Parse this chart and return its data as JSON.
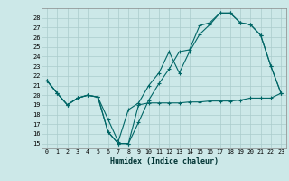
{
  "xlabel": "Humidex (Indice chaleur)",
  "bg_color": "#cce8e8",
  "grid_color": "#aacccc",
  "line_color": "#006666",
  "xlim": [
    -0.5,
    23.5
  ],
  "ylim": [
    14.5,
    29.0
  ],
  "xticks": [
    0,
    1,
    2,
    3,
    4,
    5,
    6,
    7,
    8,
    9,
    10,
    11,
    12,
    13,
    14,
    15,
    16,
    17,
    18,
    19,
    20,
    21,
    22,
    23
  ],
  "yticks": [
    15,
    16,
    17,
    18,
    19,
    20,
    21,
    22,
    23,
    24,
    25,
    26,
    27,
    28
  ],
  "line1_x": [
    0,
    1,
    2,
    3,
    4,
    5,
    6,
    7,
    8,
    9,
    10,
    11,
    12,
    13,
    14,
    15,
    16,
    17,
    18,
    19,
    20,
    21,
    22,
    23
  ],
  "line1_y": [
    21.5,
    20.2,
    19.0,
    19.7,
    20.0,
    19.8,
    16.2,
    15.0,
    15.0,
    19.0,
    19.2,
    19.2,
    19.2,
    19.2,
    19.3,
    19.3,
    19.4,
    19.4,
    19.4,
    19.5,
    19.7,
    19.7,
    19.7,
    20.2
  ],
  "line2_x": [
    0,
    1,
    2,
    3,
    4,
    5,
    6,
    7,
    8,
    9,
    10,
    11,
    12,
    13,
    14,
    15,
    16,
    17,
    18,
    19,
    20,
    21,
    22,
    23
  ],
  "line2_y": [
    21.5,
    20.2,
    19.0,
    19.7,
    20.0,
    19.8,
    17.5,
    15.2,
    18.5,
    19.2,
    21.0,
    22.3,
    24.5,
    22.3,
    24.5,
    26.3,
    27.3,
    28.5,
    28.5,
    27.5,
    27.3,
    26.2,
    23.0,
    20.2
  ],
  "line3_x": [
    0,
    1,
    2,
    3,
    4,
    5,
    6,
    7,
    8,
    9,
    10,
    11,
    12,
    13,
    14,
    15,
    16,
    17,
    18,
    19,
    20,
    21,
    22,
    23
  ],
  "line3_y": [
    21.5,
    20.2,
    19.0,
    19.7,
    20.0,
    19.8,
    16.2,
    15.0,
    15.0,
    17.2,
    19.5,
    21.2,
    22.7,
    24.5,
    24.7,
    27.2,
    27.5,
    28.5,
    28.5,
    27.5,
    27.3,
    26.2,
    23.0,
    20.2
  ]
}
